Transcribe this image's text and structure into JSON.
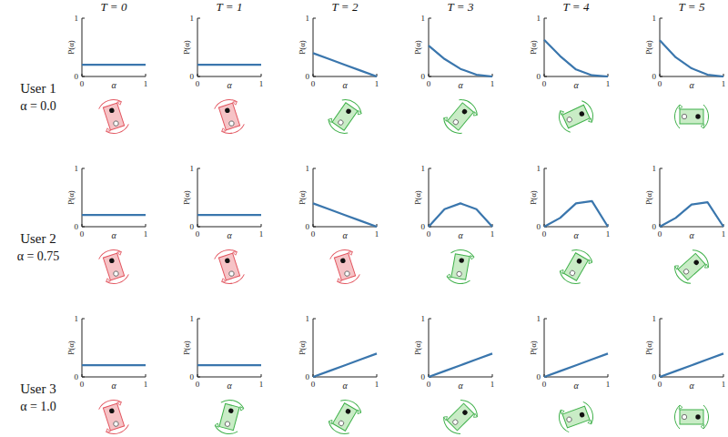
{
  "rows": [
    {
      "label": "User 1",
      "alpha": "α = 0.0"
    },
    {
      "label": "User 2",
      "alpha": "α = 0.75"
    },
    {
      "label": "User 3",
      "alpha": "α = 1.0"
    }
  ],
  "chart_data": [
    {
      "type": "line",
      "title": "T = 0",
      "x_label": "α",
      "y_label": "P(α)",
      "x": [
        0,
        0.25,
        0.5,
        0.75,
        1
      ],
      "values": [
        0.2,
        0.2,
        0.2,
        0.2,
        0.2
      ],
      "color": "#3a76ad",
      "xlim": [
        0,
        1
      ],
      "ylim": [
        0,
        1
      ],
      "xticks": [
        0,
        1
      ],
      "yticks": [
        0,
        1
      ]
    },
    {
      "type": "line",
      "title": "T = 1",
      "x_label": "α",
      "y_label": "P(α)",
      "x": [
        0,
        0.25,
        0.5,
        0.75,
        1
      ],
      "values": [
        0.2,
        0.2,
        0.2,
        0.2,
        0.2
      ],
      "color": "#3a76ad",
      "xlim": [
        0,
        1
      ],
      "ylim": [
        0,
        1
      ],
      "xticks": [
        0,
        1
      ],
      "yticks": [
        0,
        1
      ]
    },
    {
      "type": "line",
      "title": "T = 2",
      "x_label": "α",
      "y_label": "P(α)",
      "x": [
        0,
        0.25,
        0.5,
        0.75,
        1
      ],
      "values": [
        0.4,
        0.3,
        0.2,
        0.1,
        0
      ],
      "color": "#3a76ad",
      "xlim": [
        0,
        1
      ],
      "ylim": [
        0,
        1
      ],
      "xticks": [
        0,
        1
      ],
      "yticks": [
        0,
        1
      ]
    },
    {
      "type": "line",
      "title": "T = 3",
      "x_label": "α",
      "y_label": "P(α)",
      "x": [
        0,
        0.25,
        0.5,
        0.75,
        1
      ],
      "values": [
        0.53,
        0.3,
        0.13,
        0.03,
        0
      ],
      "color": "#3a76ad",
      "xlim": [
        0,
        1
      ],
      "ylim": [
        0,
        1
      ],
      "xticks": [
        0,
        1
      ],
      "yticks": [
        0,
        1
      ]
    },
    {
      "type": "line",
      "title": "T = 4",
      "x_label": "α",
      "y_label": "P(α)",
      "x": [
        0,
        0.25,
        0.5,
        0.75,
        1
      ],
      "values": [
        0.63,
        0.35,
        0.12,
        0.02,
        0
      ],
      "color": "#3a76ad",
      "xlim": [
        0,
        1
      ],
      "ylim": [
        0,
        1
      ],
      "xticks": [
        0,
        1
      ],
      "yticks": [
        0,
        1
      ]
    },
    {
      "type": "line",
      "title": "T = 5",
      "x_label": "α",
      "y_label": "P(α)",
      "x": [
        0,
        0.25,
        0.5,
        0.75,
        1
      ],
      "values": [
        0.62,
        0.33,
        0.14,
        0.03,
        0
      ],
      "color": "#3a76ad",
      "xlim": [
        0,
        1
      ],
      "ylim": [
        0,
        1
      ],
      "xticks": [
        0,
        1
      ],
      "yticks": [
        0,
        1
      ]
    },
    {
      "type": "line",
      "x_label": "α",
      "y_label": "P(α)",
      "x": [
        0,
        0.25,
        0.5,
        0.75,
        1
      ],
      "values": [
        0.2,
        0.2,
        0.2,
        0.2,
        0.2
      ],
      "color": "#3a76ad",
      "xlim": [
        0,
        1
      ],
      "ylim": [
        0,
        1
      ],
      "xticks": [
        0,
        1
      ],
      "yticks": [
        0,
        1
      ]
    },
    {
      "type": "line",
      "x_label": "α",
      "y_label": "P(α)",
      "x": [
        0,
        0.25,
        0.5,
        0.75,
        1
      ],
      "values": [
        0.2,
        0.2,
        0.2,
        0.2,
        0.2
      ],
      "color": "#3a76ad",
      "xlim": [
        0,
        1
      ],
      "ylim": [
        0,
        1
      ],
      "xticks": [
        0,
        1
      ],
      "yticks": [
        0,
        1
      ]
    },
    {
      "type": "line",
      "x_label": "α",
      "y_label": "P(α)",
      "x": [
        0,
        0.25,
        0.5,
        0.75,
        1
      ],
      "values": [
        0.4,
        0.3,
        0.2,
        0.1,
        0
      ],
      "color": "#3a76ad",
      "xlim": [
        0,
        1
      ],
      "ylim": [
        0,
        1
      ],
      "xticks": [
        0,
        1
      ],
      "yticks": [
        0,
        1
      ]
    },
    {
      "type": "line",
      "x_label": "α",
      "y_label": "P(α)",
      "x": [
        0,
        0.25,
        0.5,
        0.75,
        1
      ],
      "values": [
        0,
        0.3,
        0.4,
        0.3,
        0
      ],
      "color": "#3a76ad",
      "xlim": [
        0,
        1
      ],
      "ylim": [
        0,
        1
      ],
      "xticks": [
        0,
        1
      ],
      "yticks": [
        0,
        1
      ]
    },
    {
      "type": "line",
      "x_label": "α",
      "y_label": "P(α)",
      "x": [
        0,
        0.25,
        0.5,
        0.75,
        1
      ],
      "values": [
        0,
        0.15,
        0.4,
        0.44,
        0
      ],
      "color": "#3a76ad",
      "xlim": [
        0,
        1
      ],
      "ylim": [
        0,
        1
      ],
      "xticks": [
        0,
        1
      ],
      "yticks": [
        0,
        1
      ]
    },
    {
      "type": "line",
      "x_label": "α",
      "y_label": "P(α)",
      "x": [
        0,
        0.25,
        0.5,
        0.75,
        1
      ],
      "values": [
        0,
        0.15,
        0.38,
        0.42,
        0
      ],
      "color": "#3a76ad",
      "xlim": [
        0,
        1
      ],
      "ylim": [
        0,
        1
      ],
      "xticks": [
        0,
        1
      ],
      "yticks": [
        0,
        1
      ]
    },
    {
      "type": "line",
      "x_label": "α",
      "y_label": "P(α)",
      "x": [
        0,
        0.25,
        0.5,
        0.75,
        1
      ],
      "values": [
        0.2,
        0.2,
        0.2,
        0.2,
        0.2
      ],
      "color": "#3a76ad",
      "xlim": [
        0,
        1
      ],
      "ylim": [
        0,
        1
      ],
      "xticks": [
        0,
        1
      ],
      "yticks": [
        0,
        1
      ]
    },
    {
      "type": "line",
      "x_label": "α",
      "y_label": "P(α)",
      "x": [
        0,
        0.25,
        0.5,
        0.75,
        1
      ],
      "values": [
        0.2,
        0.2,
        0.2,
        0.2,
        0.2
      ],
      "color": "#3a76ad",
      "xlim": [
        0,
        1
      ],
      "ylim": [
        0,
        1
      ],
      "xticks": [
        0,
        1
      ],
      "yticks": [
        0,
        1
      ]
    },
    {
      "type": "line",
      "x_label": "α",
      "y_label": "P(α)",
      "x": [
        0,
        0.25,
        0.5,
        0.75,
        1
      ],
      "values": [
        0,
        0.1,
        0.2,
        0.3,
        0.4
      ],
      "color": "#3a76ad",
      "xlim": [
        0,
        1
      ],
      "ylim": [
        0,
        1
      ],
      "xticks": [
        0,
        1
      ],
      "yticks": [
        0,
        1
      ]
    },
    {
      "type": "line",
      "x_label": "α",
      "y_label": "P(α)",
      "x": [
        0,
        0.25,
        0.5,
        0.75,
        1
      ],
      "values": [
        0,
        0.1,
        0.2,
        0.3,
        0.4
      ],
      "color": "#3a76ad",
      "xlim": [
        0,
        1
      ],
      "ylim": [
        0,
        1
      ],
      "xticks": [
        0,
        1
      ],
      "yticks": [
        0,
        1
      ]
    },
    {
      "type": "line",
      "x_label": "α",
      "y_label": "P(α)",
      "x": [
        0,
        0.25,
        0.5,
        0.75,
        1
      ],
      "values": [
        0,
        0.1,
        0.2,
        0.3,
        0.4
      ],
      "color": "#3a76ad",
      "xlim": [
        0,
        1
      ],
      "ylim": [
        0,
        1
      ],
      "xticks": [
        0,
        1
      ],
      "yticks": [
        0,
        1
      ]
    },
    {
      "type": "line",
      "x_label": "α",
      "y_label": "P(α)",
      "x": [
        0,
        0.25,
        0.5,
        0.75,
        1
      ],
      "values": [
        0,
        0.1,
        0.2,
        0.3,
        0.4
      ],
      "color": "#3a76ad",
      "xlim": [
        0,
        1
      ],
      "ylim": [
        0,
        1
      ],
      "xticks": [
        0,
        1
      ],
      "yticks": [
        0,
        1
      ]
    }
  ]
}
